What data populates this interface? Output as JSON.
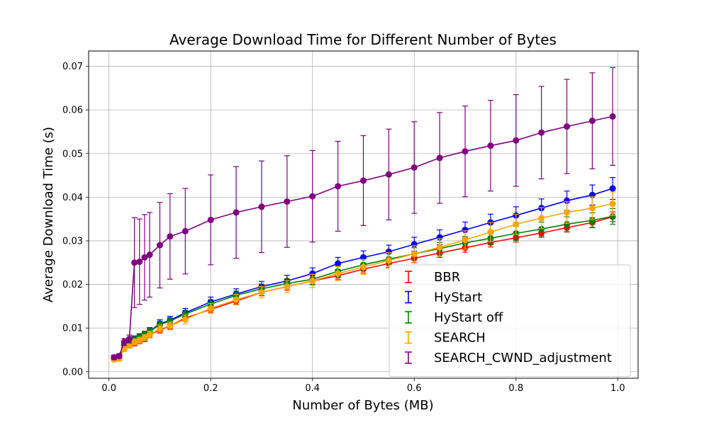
{
  "chart_data": {
    "type": "line",
    "title": "Average Download Time for Different Number of Bytes",
    "xlabel": "Number of Bytes (MB)",
    "ylabel": "Average Download Time (s)",
    "xlim": [
      -0.04,
      1.04
    ],
    "ylim": [
      -0.0015,
      0.0735
    ],
    "x_ticks": [
      0.0,
      0.2,
      0.4,
      0.6,
      0.8,
      1.0
    ],
    "x_tick_labels": [
      "0.0",
      "0.2",
      "0.4",
      "0.6",
      "0.8",
      "1.0"
    ],
    "y_ticks": [
      0.0,
      0.01,
      0.02,
      0.03,
      0.04,
      0.05,
      0.06,
      0.07
    ],
    "y_tick_labels": [
      "0.00",
      "0.01",
      "0.02",
      "0.03",
      "0.04",
      "0.05",
      "0.06",
      "0.07"
    ],
    "grid": true,
    "legend_position": "lower-right",
    "error_bars": true,
    "x": [
      0.01,
      0.02,
      0.03,
      0.04,
      0.05,
      0.06,
      0.07,
      0.08,
      0.1,
      0.12,
      0.15,
      0.2,
      0.25,
      0.3,
      0.35,
      0.4,
      0.45,
      0.5,
      0.55,
      0.6,
      0.65,
      0.7,
      0.75,
      0.8,
      0.85,
      0.9,
      0.95,
      0.99
    ],
    "series": [
      {
        "name": "BBR",
        "color": "#ff0000",
        "y": [
          0.003,
          0.0032,
          0.0055,
          0.006,
          0.0065,
          0.007,
          0.0075,
          0.0085,
          0.0095,
          0.0105,
          0.0123,
          0.0143,
          0.0162,
          0.0182,
          0.0195,
          0.0208,
          0.022,
          0.0235,
          0.0248,
          0.026,
          0.0272,
          0.0284,
          0.0296,
          0.0307,
          0.0318,
          0.033,
          0.0342,
          0.0355
        ],
        "err": [
          0.0005,
          0.0005,
          0.0005,
          0.0005,
          0.0006,
          0.0006,
          0.0006,
          0.0006,
          0.0007,
          0.0007,
          0.0007,
          0.0008,
          0.0008,
          0.0008,
          0.0008,
          0.0009,
          0.0009,
          0.0009,
          0.0009,
          0.001,
          0.001,
          0.001,
          0.001,
          0.001,
          0.001,
          0.001,
          0.0011,
          0.0011
        ]
      },
      {
        "name": "HyStart",
        "color": "#0000ff",
        "y": [
          0.0032,
          0.0035,
          0.0062,
          0.0068,
          0.0075,
          0.008,
          0.0085,
          0.0093,
          0.011,
          0.0118,
          0.0135,
          0.016,
          0.0178,
          0.0195,
          0.0208,
          0.0225,
          0.0248,
          0.0262,
          0.0275,
          0.0292,
          0.0308,
          0.0325,
          0.0342,
          0.0358,
          0.0375,
          0.0392,
          0.0405,
          0.042
        ],
        "err": [
          0.0006,
          0.0006,
          0.0006,
          0.0006,
          0.0007,
          0.0007,
          0.0007,
          0.0008,
          0.0009,
          0.0009,
          0.001,
          0.0011,
          0.0012,
          0.0012,
          0.0013,
          0.0013,
          0.0014,
          0.0015,
          0.0015,
          0.0016,
          0.0017,
          0.0018,
          0.0019,
          0.002,
          0.0021,
          0.0022,
          0.0023,
          0.0025
        ]
      },
      {
        "name": "HyStart off",
        "color": "#008000",
        "y": [
          0.0031,
          0.0034,
          0.006,
          0.0066,
          0.0074,
          0.0079,
          0.0086,
          0.0092,
          0.0108,
          0.0116,
          0.0132,
          0.0155,
          0.0175,
          0.019,
          0.0202,
          0.0212,
          0.023,
          0.0245,
          0.0258,
          0.027,
          0.0282,
          0.0295,
          0.0306,
          0.0317,
          0.0327,
          0.0338,
          0.0347,
          0.0356
        ],
        "err": [
          0.0005,
          0.0005,
          0.0006,
          0.0006,
          0.0006,
          0.0006,
          0.0007,
          0.0007,
          0.0008,
          0.0008,
          0.0009,
          0.001,
          0.001,
          0.0011,
          0.0011,
          0.0012,
          0.0012,
          0.0013,
          0.0013,
          0.0014,
          0.0014,
          0.0015,
          0.0015,
          0.0016,
          0.0016,
          0.0017,
          0.0017,
          0.0018
        ]
      },
      {
        "name": "SEARCH",
        "color": "#ffa500",
        "y": [
          0.0028,
          0.003,
          0.0052,
          0.006,
          0.0068,
          0.0072,
          0.0078,
          0.0085,
          0.0098,
          0.0105,
          0.012,
          0.0145,
          0.0165,
          0.0182,
          0.0195,
          0.0208,
          0.0225,
          0.024,
          0.0255,
          0.027,
          0.0285,
          0.0302,
          0.032,
          0.0338,
          0.0352,
          0.0365,
          0.0375,
          0.0385
        ],
        "err": [
          0.0005,
          0.0005,
          0.0006,
          0.0006,
          0.0007,
          0.0007,
          0.0007,
          0.0008,
          0.0009,
          0.0009,
          0.001,
          0.0011,
          0.0012,
          0.0013,
          0.0014,
          0.0015,
          0.0016,
          0.0017,
          0.0018,
          0.0019,
          0.002,
          0.0021,
          0.0022,
          0.0023,
          0.0024,
          0.0025,
          0.0026,
          0.0027
        ]
      },
      {
        "name": "SEARCH_CWND_adjustment",
        "color": "#800080",
        "y": [
          0.0033,
          0.0036,
          0.0068,
          0.0075,
          0.025,
          0.0252,
          0.0262,
          0.0268,
          0.029,
          0.031,
          0.0322,
          0.0348,
          0.0365,
          0.0378,
          0.039,
          0.0402,
          0.0425,
          0.0438,
          0.0452,
          0.0468,
          0.049,
          0.0505,
          0.0518,
          0.053,
          0.0548,
          0.0562,
          0.0575,
          0.0585
        ],
        "err": [
          0.0005,
          0.0005,
          0.0008,
          0.0009,
          0.0103,
          0.0098,
          0.0098,
          0.0097,
          0.0098,
          0.0098,
          0.0098,
          0.0103,
          0.0105,
          0.0105,
          0.0105,
          0.0105,
          0.0103,
          0.0103,
          0.0104,
          0.0105,
          0.0104,
          0.0104,
          0.0104,
          0.0105,
          0.0106,
          0.0108,
          0.011,
          0.0112
        ]
      }
    ]
  }
}
